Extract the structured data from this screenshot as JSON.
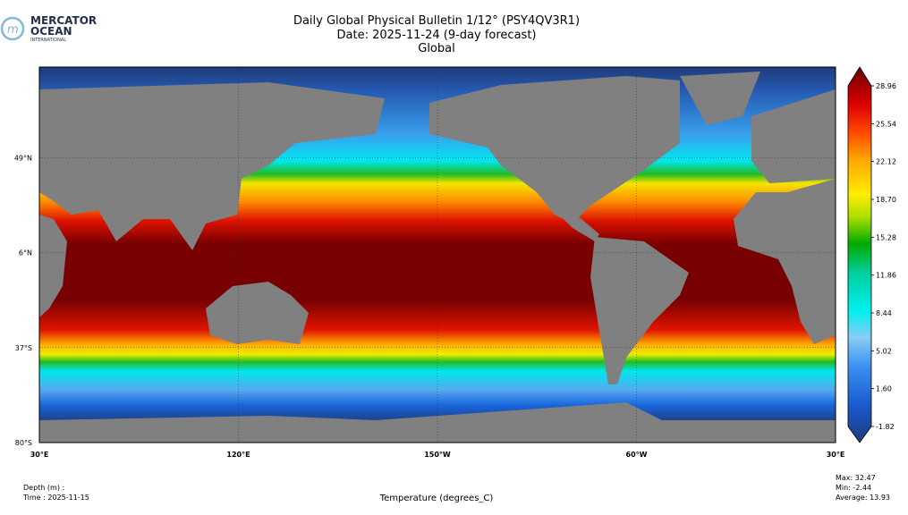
{
  "logo": {
    "line1": "MERCATOR",
    "line2": "OCEAN",
    "line3": "INTERNATIONAL"
  },
  "header": {
    "title": "Daily Global Physical Bulletin 1/12° (PSY4QV3R1)",
    "date": "Date: 2025-11-24 (9-day forecast)",
    "region": "Global"
  },
  "map": {
    "xlim": [
      30,
      390
    ],
    "ylim": [
      -80,
      90
    ],
    "xticks": [
      {
        "value": 30,
        "label": "30°E"
      },
      {
        "value": 120,
        "label": "120°E"
      },
      {
        "value": 210,
        "label": "150°W"
      },
      {
        "value": 300,
        "label": "60°W"
      },
      {
        "value": 390,
        "label": "30°E"
      }
    ],
    "yticks": [
      {
        "value": 49,
        "label": "49°N"
      },
      {
        "value": 6,
        "label": "6°N"
      },
      {
        "value": -37,
        "label": "37°S"
      },
      {
        "value": -80,
        "label": "80°S"
      }
    ]
  },
  "colorbar": {
    "ticks": [
      28.96,
      25.54,
      22.12,
      {
        "value": 18.7,
        "label": "18.70"
      },
      15.28,
      11.86,
      8.44,
      5.02,
      {
        "value": 1.6,
        "label": "1.60"
      },
      -1.82
    ]
  },
  "footer": {
    "depth": "Depth (m) :",
    "time": "Time : 2025-11-15",
    "variable": "Temperature (degrees_C)",
    "max": "Max: 32.47",
    "min": "Min: -2.44",
    "average": "Average: 13.93"
  }
}
